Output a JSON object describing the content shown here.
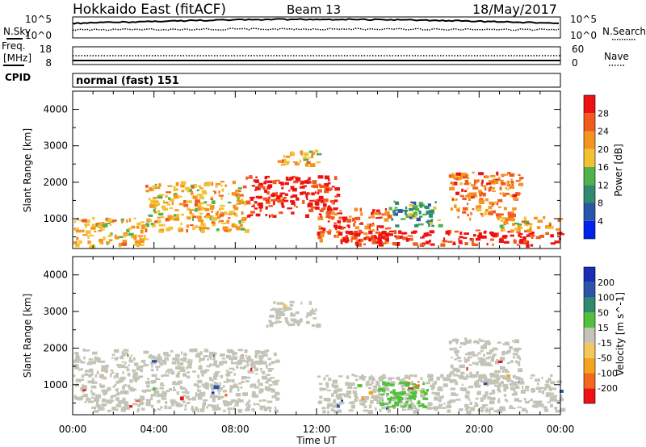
{
  "header": {
    "station": "Hokkaido East (fitACF)",
    "beam": "Beam 13",
    "date": "18/May/2017"
  },
  "noise_panel": {
    "left_label": "N.Sky",
    "right_label": "N.Search",
    "ticks": [
      "10^5",
      "10^0"
    ]
  },
  "freq_panel": {
    "left_label_1": "Freq.",
    "left_label_2": "[MHz]",
    "left_ticks": [
      "18",
      "8"
    ],
    "right_label": "Nave",
    "right_ticks": [
      "60",
      "0"
    ]
  },
  "cpid": {
    "label": "CPID",
    "value": "normal (fast) 151"
  },
  "colors": {
    "power": [
      "#0022ee",
      "#2b55a8",
      "#2f8a6e",
      "#4fb24a",
      "#f2c230",
      "#f5931f",
      "#f05a1e",
      "#ee1111"
    ],
    "velocity": [
      "#ee1111",
      "#f3691c",
      "#f7a31f",
      "#f2c85a",
      "#c3c3b6",
      "#52c13c",
      "#2f8a6e",
      "#2b55a8",
      "#1a2fb4"
    ]
  },
  "chart_data": [
    {
      "type": "heatmap",
      "title": "Power",
      "ylabel": "Slant Range [km]",
      "xlim": [
        "00:00",
        "00:00"
      ],
      "ylim": [
        180,
        4500
      ],
      "yticks": [
        1000,
        2000,
        3000,
        4000
      ],
      "colorbar": {
        "label": "Power [dB]",
        "ticks": [
          4,
          8,
          12,
          16,
          20,
          24,
          28
        ],
        "range": [
          0,
          32
        ]
      },
      "regions": [
        {
          "x": [
            0.0,
            3.5
          ],
          "y": [
            250,
            1050
          ],
          "value_db": 20
        },
        {
          "x": [
            3.5,
            8.5
          ],
          "y": [
            700,
            2050
          ],
          "value_db": 20
        },
        {
          "x": [
            8.5,
            13.0
          ],
          "y": [
            1100,
            2200
          ],
          "value_db": 30
        },
        {
          "x": [
            10.0,
            12.0
          ],
          "y": [
            2500,
            2900
          ],
          "value_db": 20
        },
        {
          "x": [
            12.0,
            15.5
          ],
          "y": [
            400,
            1300
          ],
          "value_db": 26
        },
        {
          "x": [
            15.5,
            18.0
          ],
          "y": [
            800,
            1500
          ],
          "value_db": 12
        },
        {
          "x": [
            13.0,
            24.0
          ],
          "y": [
            300,
            700
          ],
          "value_db": 30
        },
        {
          "x": [
            18.5,
            22.0
          ],
          "y": [
            1000,
            2300
          ],
          "value_db": 24
        },
        {
          "x": [
            21.0,
            24.0
          ],
          "y": [
            700,
            1100
          ],
          "value_db": 20
        }
      ]
    },
    {
      "type": "heatmap",
      "title": "Velocity",
      "ylabel": "Slant Range [km]",
      "xlabel": "Time UT",
      "xticks": [
        "00:00",
        "04:00",
        "08:00",
        "12:00",
        "16:00",
        "20:00",
        "00:00"
      ],
      "ylim": [
        180,
        4500
      ],
      "yticks": [
        1000,
        2000,
        3000,
        4000
      ],
      "colorbar": {
        "label": "Velocity [m s^-1]",
        "ticks": [
          200,
          100,
          50,
          15,
          -15,
          -50,
          -100,
          -200
        ]
      },
      "regions": [
        {
          "x": [
            0.0,
            10.0
          ],
          "y": [
            300,
            2000
          ],
          "value_ms": 0
        },
        {
          "x": [
            9.5,
            12.0
          ],
          "y": [
            2600,
            3300
          ],
          "value_ms": 0
        },
        {
          "x": [
            12.0,
            24.0
          ],
          "y": [
            300,
            1300
          ],
          "value_ms": 0
        },
        {
          "x": [
            15.0,
            17.5
          ],
          "y": [
            400,
            1100
          ],
          "value_ms": 40
        },
        {
          "x": [
            16.5,
            17.0
          ],
          "y": [
            1000,
            1200
          ],
          "value_ms": -60
        },
        {
          "x": [
            18.5,
            22.0
          ],
          "y": [
            1000,
            2300
          ],
          "value_ms": 0
        }
      ]
    }
  ]
}
